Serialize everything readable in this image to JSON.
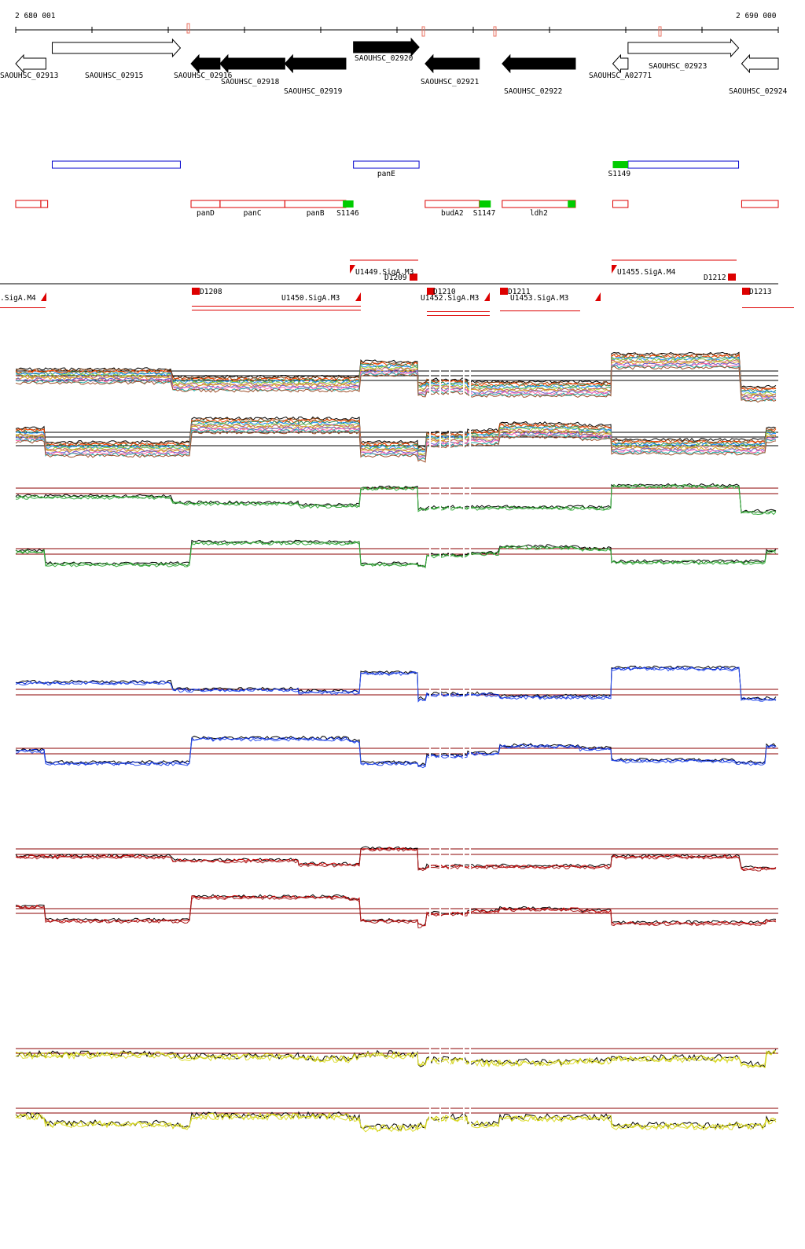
{
  "ruler": {
    "start_label": "2 680 001",
    "end_label": "2 690 000",
    "start_coord": 2680001,
    "end_coord": 2690000
  },
  "genes": [
    {
      "name": "SAOUHSC_02913",
      "start": 2680001,
      "end": 2680397,
      "strand": "-",
      "style": "open"
    },
    {
      "name": "SAOUHSC_02915",
      "start": 2680480,
      "end": 2682160,
      "strand": "+",
      "style": "open"
    },
    {
      "name": "SAOUHSC_02916",
      "start": 2682300,
      "end": 2682680,
      "strand": "-",
      "style": "filled"
    },
    {
      "name": "SAOUHSC_02918",
      "start": 2682680,
      "end": 2683530,
      "strand": "-",
      "style": "filled"
    },
    {
      "name": "SAOUHSC_02919",
      "start": 2683530,
      "end": 2684330,
      "strand": "-",
      "style": "filled"
    },
    {
      "name": "SAOUHSC_02920",
      "start": 2684430,
      "end": 2685290,
      "strand": "+",
      "style": "filled"
    },
    {
      "name": "SAOUHSC_02921",
      "start": 2685370,
      "end": 2686080,
      "strand": "-",
      "style": "filled"
    },
    {
      "name": "SAOUHSC_02922",
      "start": 2686380,
      "end": 2687340,
      "strand": "-",
      "style": "filled"
    },
    {
      "name": "SAOUHSC_A02771",
      "start": 2687830,
      "end": 2688030,
      "strand": "-",
      "style": "open"
    },
    {
      "name": "SAOUHSC_02923",
      "start": 2688030,
      "end": 2689480,
      "strand": "+",
      "style": "open"
    },
    {
      "name": "SAOUHSC_02924",
      "start": 2689520,
      "end": 2690000,
      "strand": "-",
      "style": "open"
    }
  ],
  "operons": [
    {
      "start": 2680480,
      "end": 2682160
    },
    {
      "start": 2684430,
      "end": 2685290,
      "label": "panE"
    },
    {
      "start": 2688030,
      "end": 2689480
    }
  ],
  "transcripts": [
    {
      "start": 2680001,
      "end": 2680330
    },
    {
      "start": 2680330,
      "end": 2680420
    },
    {
      "start": 2682300,
      "end": 2682680,
      "label": "panD"
    },
    {
      "start": 2682680,
      "end": 2683530,
      "label": "panC"
    },
    {
      "start": 2683530,
      "end": 2684330,
      "label": "panB"
    },
    {
      "start": 2685370,
      "end": 2686080,
      "label": "budA2"
    },
    {
      "start": 2686380,
      "end": 2687340,
      "label": "ldh2"
    },
    {
      "start": 2687830,
      "end": 2688030
    },
    {
      "start": 2689520,
      "end": 2690000
    }
  ],
  "sigma_sites": [
    {
      "start": 2684290,
      "end": 2684430,
      "label": "S1146"
    },
    {
      "start": 2686080,
      "end": 2686230,
      "label": "S1147"
    },
    {
      "start": 2687240,
      "end": 2687340
    },
    {
      "start": 2687830,
      "end": 2688030,
      "label": "S1149"
    }
  ],
  "tss_labels": [
    {
      "text": "U1449.SigA.M3"
    },
    {
      "text": "D1209"
    },
    {
      "text": "U1455.SigA.M4"
    },
    {
      "text": "D1212"
    },
    {
      "text": ".SigA.M4"
    },
    {
      "text": "D1208"
    },
    {
      "text": "U1450.SigA.M3"
    },
    {
      "text": "D1210"
    },
    {
      "text": "U1452.SigA.M3"
    },
    {
      "text": "D1211"
    },
    {
      "text": "U1453.SigA.M3"
    },
    {
      "text": "D1213"
    }
  ],
  "colors": {
    "gene_filled": "#000000",
    "gene_open": "#ffffff",
    "operon": "#0000cc",
    "transcript": "#dd0000",
    "sigma_box": "#00cc00",
    "tss": "#dd0000",
    "threshold": "#8b0000",
    "track_green": "#228b22",
    "track_blue": "#0022cc",
    "track_red": "#cc0000",
    "track_yellow": "#cccc00",
    "track_black": "#000000"
  },
  "expression_tracks": [
    {
      "group": "multi-condition",
      "strand": "+",
      "levels": [
        0.55,
        0.55,
        0.4,
        0.4,
        0.4,
        0.4,
        0.7,
        0.3,
        0.35,
        0.3,
        0.3,
        0.3,
        0.85,
        0.85,
        0.2,
        0.2
      ]
    },
    {
      "group": "multi-condition",
      "strand": "-",
      "levels": [
        0.6,
        0.3,
        0.3,
        0.8,
        0.8,
        0.8,
        0.3,
        0.2,
        0.5,
        0.55,
        0.7,
        0.65,
        0.35,
        0.35,
        0.35,
        0.6
      ]
    },
    {
      "group": "green",
      "strand": "+",
      "levels": [
        0.55,
        0.55,
        0.4,
        0.4,
        0.35,
        0.35,
        0.75,
        0.25,
        0.3,
        0.3,
        0.3,
        0.3,
        0.8,
        0.8,
        0.2,
        0.2
      ]
    },
    {
      "group": "green",
      "strand": "-",
      "levels": [
        0.6,
        0.3,
        0.3,
        0.8,
        0.8,
        0.8,
        0.3,
        0.25,
        0.5,
        0.55,
        0.7,
        0.65,
        0.35,
        0.35,
        0.35,
        0.6
      ]
    },
    {
      "group": "blue",
      "strand": "+",
      "levels": [
        0.55,
        0.55,
        0.4,
        0.4,
        0.35,
        0.35,
        0.75,
        0.2,
        0.3,
        0.3,
        0.25,
        0.25,
        0.85,
        0.85,
        0.2,
        0.2
      ]
    },
    {
      "group": "blue",
      "strand": "-",
      "levels": [
        0.55,
        0.3,
        0.3,
        0.8,
        0.8,
        0.75,
        0.3,
        0.25,
        0.45,
        0.5,
        0.65,
        0.6,
        0.35,
        0.3,
        0.3,
        0.65
      ]
    },
    {
      "group": "red",
      "strand": "+",
      "levels": [
        0.55,
        0.55,
        0.45,
        0.45,
        0.35,
        0.35,
        0.75,
        0.25,
        0.3,
        0.3,
        0.3,
        0.3,
        0.55,
        0.55,
        0.25,
        0.25
      ]
    },
    {
      "group": "red",
      "strand": "-",
      "levels": [
        0.6,
        0.3,
        0.3,
        0.8,
        0.8,
        0.75,
        0.3,
        0.2,
        0.45,
        0.5,
        0.55,
        0.5,
        0.25,
        0.25,
        0.25,
        0.3
      ]
    },
    {
      "group": "yellow",
      "strand": "+",
      "levels": [
        0.55,
        0.55,
        0.5,
        0.5,
        0.45,
        0.5,
        0.55,
        0.3,
        0.4,
        0.35,
        0.35,
        0.4,
        0.45,
        0.45,
        0.3,
        0.6
      ]
    },
    {
      "group": "yellow",
      "strand": "-",
      "levels": [
        0.55,
        0.35,
        0.3,
        0.55,
        0.55,
        0.5,
        0.25,
        0.3,
        0.5,
        0.35,
        0.5,
        0.5,
        0.3,
        0.3,
        0.3,
        0.45
      ]
    }
  ]
}
